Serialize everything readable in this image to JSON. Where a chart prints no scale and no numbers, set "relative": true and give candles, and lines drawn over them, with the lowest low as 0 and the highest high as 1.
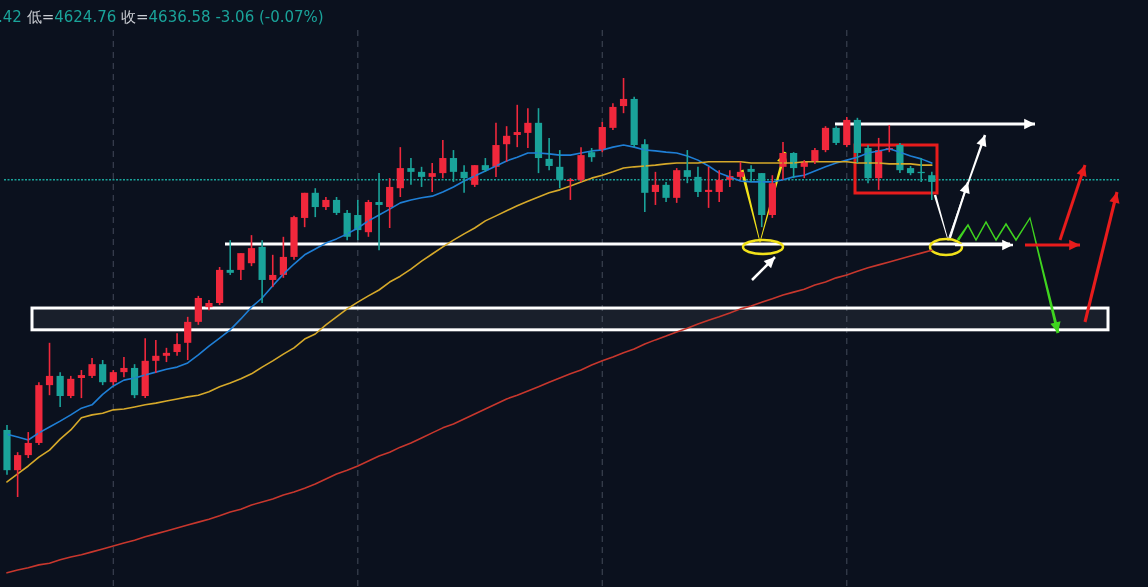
{
  "chart_data": {
    "type": "candlestick",
    "relative": true,
    "grid": "x",
    "annotations": [
      ".42 低=4624.76 收=4636.58 -3.06 (-0.07%)"
    ],
    "categories": [
      null,
      null,
      null,
      null,
      null,
      null,
      null,
      null,
      null,
      null,
      null,
      null,
      null,
      null,
      null,
      null,
      null,
      null,
      null,
      null,
      null,
      null,
      null,
      null,
      null,
      null,
      null,
      null,
      null,
      null,
      null,
      null,
      null,
      null,
      null,
      null,
      null,
      null,
      null,
      null,
      null,
      null,
      null,
      null,
      null,
      null,
      null,
      null,
      null,
      null,
      null,
      null,
      null,
      null,
      null,
      null,
      null,
      null,
      null,
      null,
      null,
      null,
      null,
      null,
      null,
      null,
      null,
      null,
      null,
      null,
      null,
      null,
      null,
      null,
      null,
      null,
      null,
      null,
      null,
      null,
      null,
      null,
      null,
      null,
      null,
      null,
      null,
      null
    ],
    "ohlc": [
      [
        0.16,
        0.172,
        0.053,
        0.064
      ],
      [
        0.064,
        0.107,
        0.0,
        0.1
      ],
      [
        0.1,
        0.155,
        0.093,
        0.129
      ],
      [
        0.129,
        0.274,
        0.124,
        0.267
      ],
      [
        0.267,
        0.368,
        0.243,
        0.289
      ],
      [
        0.289,
        0.298,
        0.215,
        0.241
      ],
      [
        0.241,
        0.289,
        0.236,
        0.282
      ],
      [
        0.284,
        0.303,
        0.236,
        0.291
      ],
      [
        0.289,
        0.332,
        0.284,
        0.317
      ],
      [
        0.317,
        0.327,
        0.267,
        0.274
      ],
      [
        0.274,
        0.303,
        0.267,
        0.298
      ],
      [
        0.298,
        0.334,
        0.286,
        0.308
      ],
      [
        0.308,
        0.317,
        0.236,
        0.243
      ],
      [
        0.241,
        0.379,
        0.236,
        0.325
      ],
      [
        0.325,
        0.375,
        0.296,
        0.337
      ],
      [
        0.337,
        0.356,
        0.322,
        0.344
      ],
      [
        0.346,
        0.391,
        0.337,
        0.365
      ],
      [
        0.368,
        0.43,
        0.327,
        0.418
      ],
      [
        0.418,
        0.48,
        0.411,
        0.475
      ],
      [
        0.453,
        0.47,
        0.446,
        0.463
      ],
      [
        0.463,
        0.549,
        0.458,
        0.542
      ],
      [
        0.542,
        0.613,
        0.53,
        0.535
      ],
      [
        0.542,
        0.582,
        0.518,
        0.582
      ],
      [
        0.558,
        0.625,
        0.551,
        0.594
      ],
      [
        0.597,
        0.613,
        0.463,
        0.518
      ],
      [
        0.518,
        0.578,
        0.501,
        0.53
      ],
      [
        0.53,
        0.621,
        0.523,
        0.573
      ],
      [
        0.573,
        0.671,
        0.566,
        0.668
      ],
      [
        0.666,
        0.726,
        0.644,
        0.726
      ],
      [
        0.726,
        0.737,
        0.668,
        0.692
      ],
      [
        0.692,
        0.716,
        0.685,
        0.709
      ],
      [
        0.709,
        0.716,
        0.673,
        0.678
      ],
      [
        0.678,
        0.685,
        0.613,
        0.621
      ],
      [
        0.673,
        0.709,
        0.613,
        0.637
      ],
      [
        0.632,
        0.709,
        0.621,
        0.704
      ],
      [
        0.704,
        0.773,
        0.589,
        0.697
      ],
      [
        0.692,
        0.761,
        0.642,
        0.74
      ],
      [
        0.737,
        0.835,
        0.716,
        0.785
      ],
      [
        0.785,
        0.809,
        0.745,
        0.776
      ],
      [
        0.776,
        0.788,
        0.74,
        0.764
      ],
      [
        0.764,
        0.797,
        0.728,
        0.773
      ],
      [
        0.773,
        0.852,
        0.761,
        0.809
      ],
      [
        0.809,
        0.828,
        0.752,
        0.776
      ],
      [
        0.776,
        0.792,
        0.726,
        0.761
      ],
      [
        0.745,
        0.792,
        0.74,
        0.792
      ],
      [
        0.792,
        0.809,
        0.776,
        0.78
      ],
      [
        0.788,
        0.893,
        0.764,
        0.84
      ],
      [
        0.842,
        0.885,
        0.8,
        0.862
      ],
      [
        0.864,
        0.936,
        0.835,
        0.871
      ],
      [
        0.869,
        0.928,
        0.833,
        0.893
      ],
      [
        0.893,
        0.928,
        0.773,
        0.809
      ],
      [
        0.807,
        0.857,
        0.78,
        0.79
      ],
      [
        0.788,
        0.828,
        0.737,
        0.757
      ],
      [
        0.754,
        0.761,
        0.709,
        0.757
      ],
      [
        0.757,
        0.835,
        0.752,
        0.816
      ],
      [
        0.823,
        0.833,
        0.8,
        0.811
      ],
      [
        0.828,
        0.895,
        0.823,
        0.883
      ],
      [
        0.881,
        0.94,
        0.876,
        0.931
      ],
      [
        0.933,
        1.0,
        0.916,
        0.95
      ],
      [
        0.95,
        0.955,
        0.835,
        0.84
      ],
      [
        0.842,
        0.854,
        0.68,
        0.726
      ],
      [
        0.728,
        0.776,
        0.697,
        0.745
      ],
      [
        0.745,
        0.752,
        0.704,
        0.714
      ],
      [
        0.714,
        0.785,
        0.702,
        0.78
      ],
      [
        0.78,
        0.828,
        0.749,
        0.764
      ],
      [
        0.764,
        0.788,
        0.716,
        0.728
      ],
      [
        0.728,
        0.788,
        0.69,
        0.733
      ],
      [
        0.728,
        0.78,
        0.704,
        0.757
      ],
      [
        0.757,
        0.78,
        0.74,
        0.766
      ],
      [
        0.764,
        0.8,
        0.757,
        0.776
      ],
      [
        0.783,
        0.792,
        0.752,
        0.776
      ],
      [
        0.773,
        0.773,
        0.644,
        0.673
      ],
      [
        0.673,
        0.768,
        0.666,
        0.749
      ],
      [
        0.788,
        0.847,
        0.757,
        0.821
      ],
      [
        0.821,
        0.823,
        0.761,
        0.785
      ],
      [
        0.788,
        0.804,
        0.761,
        0.8
      ],
      [
        0.8,
        0.833,
        0.795,
        0.828
      ],
      [
        0.828,
        0.885,
        0.823,
        0.881
      ],
      [
        0.881,
        0.885,
        0.84,
        0.845
      ],
      [
        0.84,
        0.907,
        0.835,
        0.9
      ],
      [
        0.9,
        0.905,
        0.797,
        0.821
      ],
      [
        0.833,
        0.84,
        0.749,
        0.761
      ],
      [
        0.761,
        0.857,
        0.733,
        0.828
      ],
      [
        0.828,
        0.888,
        0.823,
        0.833
      ],
      [
        0.84,
        0.845,
        0.773,
        0.78
      ],
      [
        0.785,
        0.79,
        0.768,
        0.773
      ],
      [
        0.776,
        0.809,
        0.752,
        0.773
      ],
      [
        0.768,
        0.776,
        0.709,
        0.752
      ]
    ],
    "colors": [
      "#1aa39a",
      "#f0283c",
      "#f0283c",
      "#f0283c",
      "#f0283c",
      "#1aa39a",
      "#f0283c",
      "#f0283c",
      "#f0283c",
      "#1aa39a",
      "#f0283c",
      "#f0283c",
      "#1aa39a",
      "#f0283c",
      "#f0283c",
      "#f0283c",
      "#f0283c",
      "#f0283c",
      "#f0283c",
      "#f0283c",
      "#f0283c",
      "#1aa39a",
      "#f0283c",
      "#f0283c",
      "#1aa39a",
      "#f0283c",
      "#f0283c",
      "#f0283c",
      "#f0283c",
      "#1aa39a",
      "#f0283c",
      "#1aa39a",
      "#1aa39a",
      "#1aa39a",
      "#f0283c",
      "#1aa39a",
      "#f0283c",
      "#f0283c",
      "#1aa39a",
      "#1aa39a",
      "#f0283c",
      "#f0283c",
      "#1aa39a",
      "#1aa39a",
      "#f0283c",
      "#1aa39a",
      "#f0283c",
      "#f0283c",
      "#f0283c",
      "#f0283c",
      "#1aa39a",
      "#1aa39a",
      "#1aa39a",
      "#f0283c",
      "#f0283c",
      "#1aa39a",
      "#f0283c",
      "#f0283c",
      "#f0283c",
      "#1aa39a",
      "#1aa39a",
      "#f0283c",
      "#1aa39a",
      "#f0283c",
      "#1aa39a",
      "#1aa39a",
      "#f0283c",
      "#f0283c",
      "#f0283c",
      "#f0283c",
      "#1aa39a",
      "#1aa39a",
      "#f0283c",
      "#f0283c",
      "#1aa39a",
      "#f0283c",
      "#f0283c",
      "#f0283c",
      "#1aa39a",
      "#f0283c",
      "#1aa39a",
      "#1aa39a",
      "#f0283c",
      "#f0283c",
      "#1aa39a",
      "#1aa39a",
      "#1aa39a",
      "#1aa39a"
    ],
    "series": [
      {
        "type": "line",
        "color": "#1f7fd6",
        "values": [
          0.15,
          0.143,
          0.136,
          0.153,
          0.167,
          0.181,
          0.196,
          0.212,
          0.22,
          0.245,
          0.265,
          0.279,
          0.284,
          0.291,
          0.298,
          0.305,
          0.31,
          0.32,
          0.339,
          0.36,
          0.379,
          0.399,
          0.425,
          0.453,
          0.475,
          0.504,
          0.532,
          0.556,
          0.578,
          0.592,
          0.606,
          0.616,
          0.628,
          0.642,
          0.659,
          0.673,
          0.687,
          0.702,
          0.709,
          0.714,
          0.718,
          0.728,
          0.74,
          0.754,
          0.766,
          0.778,
          0.79,
          0.802,
          0.811,
          0.821,
          0.821,
          0.819,
          0.816,
          0.816,
          0.821,
          0.826,
          0.828,
          0.835,
          0.84,
          0.835,
          0.828,
          0.826,
          0.823,
          0.821,
          0.814,
          0.804,
          0.79,
          0.773,
          0.764,
          0.754,
          0.752,
          0.752,
          0.752,
          0.757,
          0.764,
          0.768,
          0.778,
          0.788,
          0.797,
          0.804,
          0.811,
          0.821,
          0.826,
          0.831,
          0.823,
          0.814,
          0.807,
          0.797
        ]
      },
      {
        "type": "line",
        "color": "#d6a92a",
        "values": [
          0.036,
          0.055,
          0.074,
          0.095,
          0.112,
          0.138,
          0.16,
          0.189,
          0.196,
          0.2,
          0.208,
          0.21,
          0.215,
          0.22,
          0.224,
          0.229,
          0.234,
          0.239,
          0.243,
          0.251,
          0.263,
          0.272,
          0.282,
          0.294,
          0.31,
          0.325,
          0.341,
          0.356,
          0.377,
          0.389,
          0.411,
          0.43,
          0.449,
          0.465,
          0.48,
          0.494,
          0.513,
          0.527,
          0.544,
          0.563,
          0.58,
          0.597,
          0.613,
          0.628,
          0.642,
          0.659,
          0.671,
          0.683,
          0.695,
          0.706,
          0.716,
          0.726,
          0.733,
          0.742,
          0.752,
          0.761,
          0.768,
          0.776,
          0.785,
          0.788,
          0.79,
          0.792,
          0.795,
          0.797,
          0.797,
          0.797,
          0.8,
          0.8,
          0.8,
          0.8,
          0.797,
          0.797,
          0.797,
          0.797,
          0.797,
          0.8,
          0.8,
          0.8,
          0.8,
          0.8,
          0.797,
          0.797,
          0.797,
          0.795,
          0.795,
          0.795,
          0.792,
          0.792
        ]
      },
      {
        "type": "line",
        "color": "#c8372d",
        "values": [
          -0.181,
          -0.174,
          -0.169,
          -0.162,
          -0.158,
          -0.15,
          -0.143,
          -0.138,
          -0.131,
          -0.124,
          -0.117,
          -0.11,
          -0.103,
          -0.095,
          -0.088,
          -0.081,
          -0.074,
          -0.067,
          -0.06,
          -0.053,
          -0.045,
          -0.036,
          -0.029,
          -0.019,
          -0.012,
          -0.005,
          0.005,
          0.012,
          0.021,
          0.031,
          0.043,
          0.055,
          0.064,
          0.074,
          0.086,
          0.098,
          0.107,
          0.119,
          0.129,
          0.141,
          0.153,
          0.165,
          0.174,
          0.186,
          0.198,
          0.21,
          0.222,
          0.234,
          0.243,
          0.253,
          0.263,
          0.274,
          0.284,
          0.294,
          0.303,
          0.315,
          0.325,
          0.334,
          0.344,
          0.353,
          0.365,
          0.375,
          0.384,
          0.394,
          0.403,
          0.413,
          0.422,
          0.43,
          0.439,
          0.449,
          0.456,
          0.465,
          0.473,
          0.482,
          0.489,
          0.496,
          0.506,
          0.513,
          0.523,
          0.53,
          0.539,
          0.547,
          0.554,
          0.561,
          0.568,
          0.575,
          0.582,
          0.589
        ]
      }
    ],
    "ref_lines": [
      {
        "axis": "y",
        "value": 0.757,
        "color": "#1aa39a",
        "line_style": "dotted"
      },
      {
        "axis": "y",
        "value": 0.604,
        "color": "#ffffff",
        "line_style": "solid"
      }
    ],
    "bands": [
      {
        "axis": "y",
        "from": 0.399,
        "to": 0.451,
        "color": "#ffffff"
      }
    ]
  }
}
